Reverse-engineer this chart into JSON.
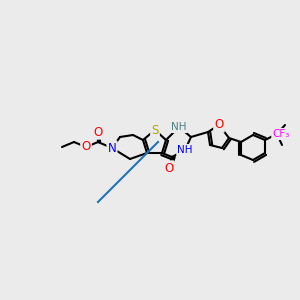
{
  "bg_color": "#ebebeb",
  "bond_color": "#000000",
  "bond_lw": 1.5,
  "font_size": 7.5,
  "fig_w": 3.0,
  "fig_h": 3.0,
  "dpi": 100,
  "atoms": {
    "S": {
      "color": "#aaaa00"
    },
    "N": {
      "color": "#0000ff"
    },
    "NH": {
      "color": "#4a8080"
    },
    "O": {
      "color": "#ff0000"
    },
    "F": {
      "color": "#ff00ff"
    },
    "C": {
      "color": "#000000"
    }
  }
}
